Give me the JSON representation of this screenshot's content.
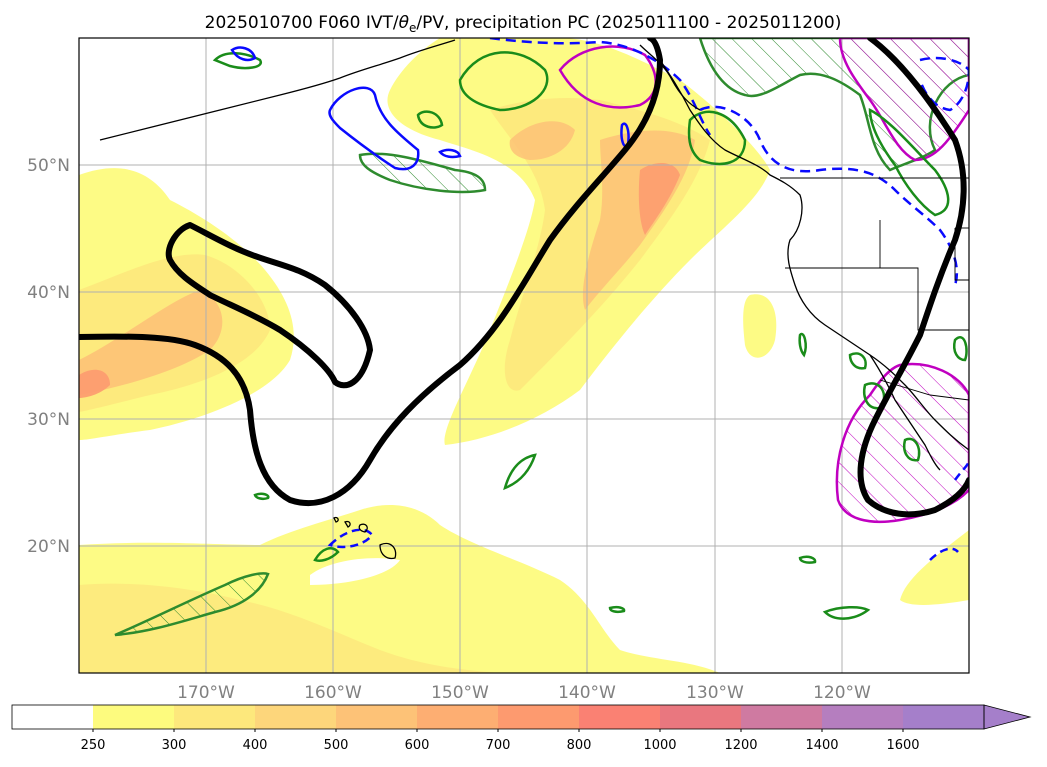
{
  "title": "2025010700 F060 IVT/θe/PV, precipitation PC (2025011100 - 2025011200)",
  "title_parts": {
    "prefix": "2025010700 F060 IVT/",
    "theta": "θ",
    "theta_sub": "e",
    "suffix": "/PV, precipitation PC (2025011100 - 2025011200)"
  },
  "map": {
    "projection": "PlateCarree",
    "lon_range": [
      -180,
      -110
    ],
    "lat_range": [
      10,
      60
    ],
    "lat_ticks": [
      {
        "value": 20,
        "label": "20°N"
      },
      {
        "value": 30,
        "label": "30°N"
      },
      {
        "value": 40,
        "label": "40°N"
      },
      {
        "value": 50,
        "label": "50°N"
      }
    ],
    "lon_ticks": [
      {
        "value": -170,
        "label": "170°W"
      },
      {
        "value": -160,
        "label": "160°W"
      },
      {
        "value": -150,
        "label": "150°W"
      },
      {
        "value": -140,
        "label": "140°W"
      },
      {
        "value": -130,
        "label": "130°W"
      },
      {
        "value": -120,
        "label": "120°W"
      }
    ],
    "gridlines": true,
    "coastline_color": "#000000",
    "layers": {
      "ivt_fill": "yellow-orange filled contours",
      "theta_e_contour": "black",
      "pv_contours": [
        "green",
        "blue"
      ],
      "precipitation_pc": "magenta hatched"
    }
  },
  "colorbar": {
    "levels": [
      "250",
      "300",
      "400",
      "500",
      "600",
      "700",
      "800",
      "1000",
      "1200",
      "1400",
      "1600"
    ],
    "colors": [
      "#ffffff",
      "#fdfb7e",
      "#fde87c",
      "#fdd67b",
      "#fdc277",
      "#fdae72",
      "#fd9a6f",
      "#fa8173",
      "#e9777f",
      "#cf7aa1",
      "#b57ebf",
      "#a57fca"
    ],
    "extend": "max"
  }
}
